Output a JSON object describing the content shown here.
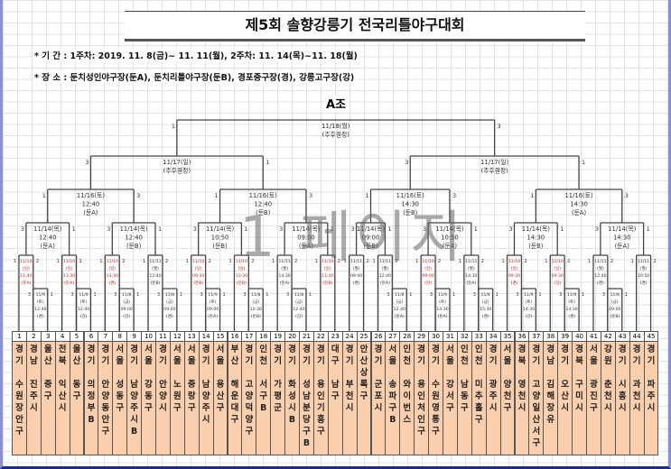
{
  "title": "제5회 솔향강릉기 전국리틀야구대회",
  "info": {
    "period": "* 기    간 : 1주차: 2019. 11. 8(금)~ 11. 11(월), 2주차: 11. 14(목)~11. 18(월)",
    "venue": "* 장    소 : 둔치성인야구장(둔A), 둔치리틀야구장(둔B), 경포중구장(경), 강릉고구장(강)"
  },
  "group": "A조",
  "watermark": "1 페이지",
  "colors": {
    "line": "#444444",
    "highlight": "#d42020",
    "team_fill": "#f9cfae"
  },
  "teams": [
    {
      "no": "1",
      "name": "경기 수원장안구"
    },
    {
      "no": "2",
      "name": "경남 진주시"
    },
    {
      "no": "3",
      "name": "울산 중구"
    },
    {
      "no": "4",
      "name": "전북 익산시"
    },
    {
      "no": "5",
      "name": "울산 동구"
    },
    {
      "no": "6",
      "name": "경기 의정부B"
    },
    {
      "no": "7",
      "name": "경기 안양동안구"
    },
    {
      "no": "8",
      "name": "서울 성동구"
    },
    {
      "no": "9",
      "name": "경기 남양주시B"
    },
    {
      "no": "10",
      "name": "서울 강동구"
    },
    {
      "no": "11",
      "name": "경기 안양시"
    },
    {
      "no": "12",
      "name": "서울 노원구"
    },
    {
      "no": "13",
      "name": "서울 중랑구"
    },
    {
      "no": "14",
      "name": "경기 남양주시"
    },
    {
      "no": "15",
      "name": "서울 용산구"
    },
    {
      "no": "16",
      "name": "부산 해운대구"
    },
    {
      "no": "17",
      "name": "경기 고양덕양구"
    },
    {
      "no": "18",
      "name": "인천 서구B"
    },
    {
      "no": "19",
      "name": "경기 가평군"
    },
    {
      "no": "20",
      "name": "경기 화성시B"
    },
    {
      "no": "21",
      "name": "경기 성남분당구B"
    },
    {
      "no": "22",
      "name": "경기 용인기흥구"
    },
    {
      "no": "23",
      "name": "대구 남구"
    },
    {
      "no": "24",
      "name": "경기 부천시"
    },
    {
      "no": "25",
      "name": "안산상록구"
    },
    {
      "no": "26",
      "name": "경기 군포시"
    },
    {
      "no": "27",
      "name": "서울 송파구B"
    },
    {
      "no": "28",
      "name": "인천 와이번스"
    },
    {
      "no": "29",
      "name": "경기 용인처인구"
    },
    {
      "no": "30",
      "name": "경기 수원영통구"
    },
    {
      "no": "31",
      "name": "서울 강서구"
    },
    {
      "no": "32",
      "name": "인천 남동구"
    },
    {
      "no": "33",
      "name": "인천 미추홀구"
    },
    {
      "no": "34",
      "name": "경기 광주시"
    },
    {
      "no": "35",
      "name": "서울 양천구"
    },
    {
      "no": "36",
      "name": "경북 영천시"
    },
    {
      "no": "37",
      "name": "경기 고양일산서구"
    },
    {
      "no": "38",
      "name": "경남 김해장유"
    },
    {
      "no": "39",
      "name": "경기 오산시"
    },
    {
      "no": "40",
      "name": "경북 구미시"
    },
    {
      "no": "41",
      "name": "서울 광진구"
    },
    {
      "no": "42",
      "name": "강원 춘천시"
    },
    {
      "no": "43",
      "name": "경기 시흥시"
    },
    {
      "no": "44",
      "name": "경기 과천시"
    },
    {
      "no": "45",
      "name": "경기 파주시"
    }
  ],
  "matches": {
    "F": {
      "round": 6,
      "lines": [
        "11/18(월)",
        "(추후결정)"
      ],
      "seeds": [
        "1",
        "3"
      ],
      "children": [
        {
          "match": "S1"
        },
        {
          "match": "S2"
        }
      ]
    },
    "S1": {
      "round": 5,
      "lines": [
        "11/17(일)",
        "(추후결정)"
      ],
      "seeds": [
        "3",
        "1"
      ],
      "children": [
        {
          "match": "Q1"
        },
        {
          "match": "Q2"
        }
      ]
    },
    "S2": {
      "round": 5,
      "lines": [
        "11/17(일)",
        "(추후결정)"
      ],
      "seeds": [
        "3",
        "1"
      ],
      "children": [
        {
          "match": "Q3"
        },
        {
          "match": "Q4"
        }
      ]
    },
    "Q1": {
      "round": 4,
      "lines": [
        "11/16(토)",
        "12:40",
        "(둔A)"
      ],
      "seeds": [
        "1",
        "3"
      ],
      "children": [
        {
          "match": "R1"
        },
        {
          "match": "R2"
        }
      ]
    },
    "Q2": {
      "round": 4,
      "lines": [
        "11/16(토)",
        "12:40",
        "(둔B)"
      ],
      "seeds": [
        "1",
        "3"
      ],
      "children": [
        {
          "match": "R3"
        },
        {
          "match": "R4"
        }
      ]
    },
    "Q3": {
      "round": 4,
      "lines": [
        "11/16(토)",
        "14:30",
        "(둔B)"
      ],
      "seeds": [
        "1",
        "3"
      ],
      "children": [
        {
          "match": "R5"
        },
        {
          "match": "R6"
        }
      ]
    },
    "Q4": {
      "round": 4,
      "lines": [
        "11/16(토)",
        "14:30",
        "(둔A)"
      ],
      "seeds": [
        "1",
        "3"
      ],
      "children": [
        {
          "match": "R7"
        },
        {
          "match": "R8"
        }
      ]
    },
    "R1": {
      "round": 3,
      "lines": [
        "11/14(목)",
        "12:40",
        "(둔A)"
      ],
      "seeds": [
        "3",
        "1"
      ],
      "children": [
        {
          "match": "A1"
        },
        {
          "match": "A2"
        }
      ]
    },
    "R2": {
      "round": 3,
      "lines": [
        "11/14(목)",
        "12:40",
        "(둔B)"
      ],
      "seeds": [
        "3",
        "1"
      ],
      "children": [
        {
          "match": "A3"
        },
        {
          "match": "A4"
        }
      ]
    },
    "R3": {
      "round": 3,
      "lines": [
        "11/14(목)",
        "10:50",
        "(둔B)"
      ],
      "seeds": [
        "3",
        "1"
      ],
      "children": [
        {
          "match": "A5"
        },
        {
          "match": "A6"
        }
      ]
    },
    "R4": {
      "round": 3,
      "lines": [
        "11/14(목)",
        "09:00",
        "(둔A)"
      ],
      "seeds": [
        "3",
        "1"
      ],
      "children": [
        {
          "match": "A7"
        },
        {
          "match": "A8"
        }
      ]
    },
    "R5": {
      "round": 3,
      "lines": [
        "11/14(목)",
        "09:00",
        "(둔B)"
      ],
      "seeds": [
        "3",
        "1"
      ],
      "children": [
        {
          "match": "A9"
        },
        {
          "match": "A10"
        }
      ]
    },
    "R6": {
      "round": 3,
      "lines": [
        "11/14(목)",
        "10:50",
        "(둔A)"
      ],
      "seeds": [
        "3",
        "1"
      ],
      "children": [
        {
          "match": "A11"
        },
        {
          "match": "A12"
        }
      ]
    },
    "R7": {
      "round": 3,
      "lines": [
        "11/14(목)",
        "14:30",
        "(둔B)"
      ],
      "seeds": [
        "3",
        "1"
      ],
      "children": [
        {
          "match": "A13"
        },
        {
          "match": "A14"
        }
      ]
    },
    "R8": {
      "round": 3,
      "lines": [
        "11/14(목)",
        "14:30",
        "(둔A)"
      ],
      "seeds": [
        "3",
        "1"
      ],
      "children": [
        {
          "match": "A15"
        },
        {
          "match": "A16"
        }
      ]
    },
    "A1": {
      "round": 2,
      "lines": [
        "11/10",
        "(일)",
        "11:40",
        "(둔A)"
      ],
      "highlight": true,
      "seeds": [
        "1",
        "2"
      ],
      "children": [
        {
          "team": 1
        },
        {
          "match": "B1"
        }
      ]
    },
    "A2": {
      "round": 2,
      "lines": [
        "11/10",
        "(일)",
        "13:30",
        "(둔A)"
      ],
      "highlight": true,
      "seeds": [
        "1",
        "2"
      ],
      "children": [
        {
          "team": 4
        },
        {
          "match": "B2"
        }
      ]
    },
    "A3": {
      "round": 2,
      "lines": [
        "11/10",
        "(일)",
        "13:30",
        "(경)"
      ],
      "highlight": true,
      "seeds": [
        "1",
        "2"
      ],
      "children": [
        {
          "team": 7
        },
        {
          "match": "B3"
        }
      ]
    },
    "A4": {
      "round": 2,
      "lines": [
        "11/11",
        "(월)",
        "12:40",
        "(둔B)"
      ],
      "seeds": [
        "1",
        "2"
      ],
      "children": [
        {
          "team": 10
        },
        {
          "match": "B4"
        }
      ]
    },
    "A5": {
      "round": 2,
      "lines": [
        "11/10",
        "(일)",
        "09:30",
        "(둔B)"
      ],
      "highlight": true,
      "seeds": [
        "1",
        "2"
      ],
      "children": [
        {
          "team": 13
        },
        {
          "match": "B5"
        }
      ]
    },
    "A6": {
      "round": 2,
      "lines": [
        "11/10",
        "(일)",
        "13:30",
        "(둔B)"
      ],
      "highlight": true,
      "seeds": [
        "1",
        "2"
      ],
      "children": [
        {
          "team": 16
        },
        {
          "match": "B6"
        }
      ]
    },
    "A7": {
      "round": 2,
      "lines": [
        "11/11",
        "(월)",
        "14:30",
        "(둔A)"
      ],
      "seeds": [
        "1",
        "2"
      ],
      "children": [
        {
          "team": 19
        },
        {
          "match": "B7"
        }
      ]
    },
    "A8": {
      "round": 2,
      "lines": [
        "11/10",
        "(일)",
        "11:40",
        "(둔B)"
      ],
      "highlight": true,
      "seeds": [
        "1",
        "2"
      ],
      "children": [
        {
          "team": 22
        },
        {
          "team": 23
        }
      ]
    },
    "A9": {
      "round": 2,
      "lines": [
        "11/11",
        "(월)",
        "09:00",
        "(경)"
      ],
      "seeds": [
        "1",
        "2"
      ],
      "children": [
        {
          "team": 24
        },
        {
          "team": 25
        }
      ]
    },
    "A10": {
      "round": 2,
      "lines": [
        "11/11",
        "(월)",
        "12:40",
        "(둔A)"
      ],
      "seeds": [
        "1",
        "2"
      ],
      "children": [
        {
          "team": 26
        },
        {
          "match": "B8"
        }
      ]
    },
    "A11": {
      "round": 2,
      "lines": [
        "11/10",
        "(일)",
        "09:00",
        "(강)"
      ],
      "highlight": true,
      "seeds": [
        "1",
        "2"
      ],
      "children": [
        {
          "team": 29
        },
        {
          "match": "B9"
        }
      ]
    },
    "A12": {
      "round": 2,
      "lines": [
        "11/11",
        "(월)",
        "14:30",
        "(둔A)"
      ],
      "seeds": [
        "1",
        "2"
      ],
      "children": [
        {
          "team": 32
        },
        {
          "match": "B10"
        }
      ]
    },
    "A13": {
      "round": 2,
      "lines": [
        "11/10",
        "(일)",
        "09:30",
        "(경)"
      ],
      "highlight": true,
      "seeds": [
        "1",
        "2"
      ],
      "children": [
        {
          "team": 35
        },
        {
          "match": "B11"
        }
      ]
    },
    "A14": {
      "round": 2,
      "lines": [
        "11/10",
        "(일)",
        "09:30",
        "(강)"
      ],
      "highlight": true,
      "seeds": [
        "1",
        "2"
      ],
      "children": [
        {
          "team": 38
        },
        {
          "match": "B12"
        }
      ]
    },
    "A15": {
      "round": 2,
      "lines": [
        "11/11",
        "(월)",
        "12:40",
        "(경)"
      ],
      "seeds": [
        "1",
        "2"
      ],
      "children": [
        {
          "team": 41
        },
        {
          "match": "B13"
        }
      ]
    },
    "A16": {
      "round": 2,
      "lines": [
        "11/11",
        "(월)",
        "10:50",
        "(경)"
      ],
      "seeds": [
        "1",
        "2"
      ],
      "children": [
        {
          "team": 44
        },
        {
          "team": 45
        }
      ]
    },
    "B1": {
      "round": 1,
      "lines": [
        "11/9",
        "(토)",
        "12:40",
        "(경)"
      ],
      "seeds": [
        "3",
        "1"
      ],
      "children": [
        {
          "team": 2
        },
        {
          "team": 3
        }
      ]
    },
    "B2": {
      "round": 1,
      "lines": [
        "11/9",
        "(토)",
        "12:40",
        "(강)"
      ],
      "seeds": [
        "3",
        "1"
      ],
      "children": [
        {
          "team": 5
        },
        {
          "team": 6
        }
      ]
    },
    "B3": {
      "round": 1,
      "lines": [
        "11/8",
        "(금)",
        "09:00",
        "(강)"
      ],
      "seeds": [
        "3",
        "1"
      ],
      "children": [
        {
          "team": 8
        },
        {
          "team": 9
        }
      ]
    },
    "B4": {
      "round": 1,
      "lines": [
        "11/8",
        "(금)",
        "09:00",
        "(경)"
      ],
      "seeds": [
        "3",
        "1"
      ],
      "children": [
        {
          "team": 11
        },
        {
          "team": 12
        }
      ]
    },
    "B5": {
      "round": 1,
      "lines": [
        "11/9",
        "(토)",
        "09:00",
        "(둔A)"
      ],
      "seeds": [
        "3",
        "1"
      ],
      "children": [
        {
          "team": 14
        },
        {
          "team": 15
        }
      ]
    },
    "B6": {
      "round": 1,
      "lines": [
        "11/8",
        "(금)",
        "10:30",
        "(둔B)"
      ],
      "seeds": [
        "3",
        "1"
      ],
      "children": [
        {
          "team": 17
        },
        {
          "team": 18
        }
      ]
    },
    "B7": {
      "round": 1,
      "lines": [
        "11/8",
        "(금)",
        "12:40",
        "(강)"
      ],
      "seeds": [
        "3",
        "1"
      ],
      "children": [
        {
          "team": 20
        },
        {
          "team": 21
        }
      ]
    },
    "B8": {
      "round": 1,
      "lines": [
        "11/8",
        "(금)",
        "12:40",
        "(둔A)"
      ],
      "seeds": [
        "3",
        "1"
      ],
      "children": [
        {
          "team": 27
        },
        {
          "team": 28
        }
      ]
    },
    "B9": {
      "round": 1,
      "lines": [
        "11/9",
        "(토)",
        "14:30",
        "(둔A)"
      ],
      "seeds": [
        "3",
        "1"
      ],
      "children": [
        {
          "team": 30
        },
        {
          "team": 31
        }
      ]
    },
    "B10": {
      "round": 1,
      "lines": [
        "11/8",
        "(금)",
        "15:30",
        "(경)"
      ],
      "seeds": [
        "3",
        "1"
      ],
      "children": [
        {
          "team": 33
        },
        {
          "team": 34
        }
      ]
    },
    "B11": {
      "round": 1,
      "lines": [
        "11/9",
        "(토)",
        "14:30",
        "(강)"
      ],
      "seeds": [
        "3",
        "1"
      ],
      "children": [
        {
          "team": 36
        },
        {
          "team": 37
        }
      ]
    },
    "B12": {
      "round": 1,
      "lines": [
        "11/9",
        "(토)",
        "14:30",
        "(경)"
      ],
      "seeds": [
        "3",
        "1"
      ],
      "children": [
        {
          "team": 39
        },
        {
          "team": 40
        }
      ]
    },
    "B13": {
      "round": 1,
      "lines": [
        "11/8",
        "(금)",
        "09:00",
        "(둔B)"
      ],
      "seeds": [
        "3",
        "1"
      ],
      "children": [
        {
          "team": 42
        },
        {
          "team": 43
        }
      ]
    }
  }
}
